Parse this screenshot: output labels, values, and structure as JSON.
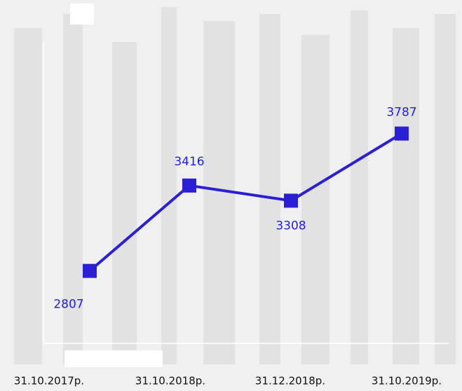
{
  "chart_data": {
    "type": "line",
    "categories": [
      "31.10.2017р.",
      "31.10.2018р.",
      "31.12.2018р.",
      "31.10.2019р."
    ],
    "values": [
      2807,
      3416,
      3308,
      3787
    ],
    "color": "#2b1fd6",
    "ylim": [
      2300,
      4400
    ]
  }
}
